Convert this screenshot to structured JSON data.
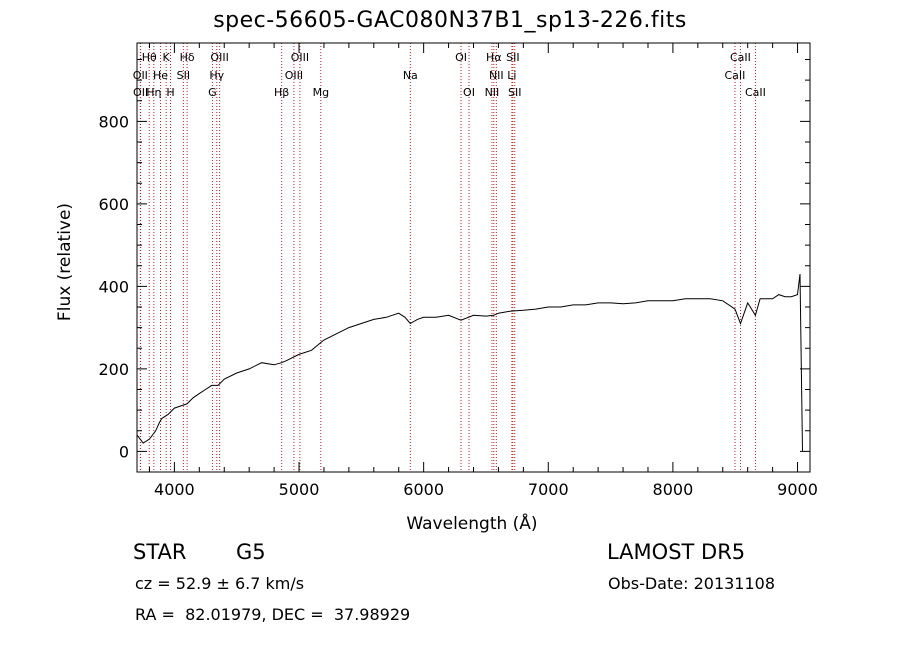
{
  "header": {
    "title": "spec-56605-GAC080N37B1_sp13-226.fits"
  },
  "info": {
    "object_class": "STAR",
    "subclass": "G5",
    "survey": "LAMOST DR5",
    "cz": "cz = 52.9 ± 6.7 km/s",
    "obs_date": "Obs-Date: 20131108",
    "radec": "RA =  82.01979, DEC =  37.98929"
  },
  "chart_data": {
    "type": "line",
    "title": "spec-56605-GAC080N37B1_sp13-226.fits",
    "xlabel": "Wavelength (Å)",
    "ylabel": "Flux (relative)",
    "xlim": [
      3700,
      9100
    ],
    "ylim": [
      -50,
      990
    ],
    "xticks": [
      4000,
      5000,
      6000,
      7000,
      8000,
      9000
    ],
    "yticks": [
      0,
      200,
      400,
      600,
      800
    ],
    "line_color": "#000000",
    "marker_color": "#b22222",
    "series": [
      {
        "x": [
          3700,
          3750,
          3800,
          3850,
          3880,
          3900,
          3950,
          4000,
          4050,
          4100,
          4150,
          4200,
          4250,
          4300,
          4350,
          4400,
          4500,
          4600,
          4700,
          4800,
          4860,
          4900,
          5000,
          5100,
          5200,
          5300,
          5400,
          5500,
          5600,
          5700,
          5800,
          5850,
          5893,
          5950,
          6000,
          6100,
          6200,
          6300,
          6400,
          6500,
          6563,
          6600,
          6700,
          6800,
          6900,
          7000,
          7100,
          7200,
          7300,
          7400,
          7500,
          7600,
          7700,
          7800,
          7900,
          8000,
          8100,
          8200,
          8300,
          8400,
          8498,
          8542,
          8600,
          8662,
          8700,
          8800,
          8850,
          8900,
          8950,
          9000,
          9020,
          9040
        ],
        "y": [
          40,
          20,
          30,
          50,
          70,
          80,
          90,
          105,
          110,
          115,
          130,
          140,
          150,
          160,
          160,
          175,
          190,
          200,
          215,
          210,
          215,
          220,
          235,
          245,
          270,
          285,
          300,
          310,
          320,
          325,
          335,
          325,
          310,
          320,
          325,
          325,
          330,
          318,
          330,
          328,
          330,
          335,
          340,
          342,
          345,
          350,
          350,
          355,
          355,
          360,
          360,
          358,
          360,
          365,
          365,
          365,
          370,
          370,
          370,
          365,
          345,
          310,
          360,
          330,
          370,
          370,
          380,
          375,
          375,
          380,
          430,
          0
        ]
      }
    ],
    "lines": [
      {
        "label": "Hθ",
        "x": 3798,
        "row": 0
      },
      {
        "label": "OII",
        "x": 3727,
        "row": 1
      },
      {
        "label": "OII",
        "x": 3729,
        "row": 2
      },
      {
        "label": "Hη",
        "x": 3835,
        "row": 2
      },
      {
        "label": "K",
        "x": 3934,
        "row": 0
      },
      {
        "label": "He",
        "x": 3889,
        "row": 1
      },
      {
        "label": "H",
        "x": 3969,
        "row": 2
      },
      {
        "label": "Hδ",
        "x": 4102,
        "row": 0
      },
      {
        "label": "SII",
        "x": 4072,
        "row": 1
      },
      {
        "label": "OIII",
        "x": 4363,
        "row": 0
      },
      {
        "label": "Hγ",
        "x": 4340,
        "row": 1
      },
      {
        "label": "G",
        "x": 4305,
        "row": 2
      },
      {
        "label": "OIII",
        "x": 5007,
        "row": 0
      },
      {
        "label": "OIII",
        "x": 4959,
        "row": 1
      },
      {
        "label": "Hβ",
        "x": 4861,
        "row": 2
      },
      {
        "label": "Mg",
        "x": 5175,
        "row": 2
      },
      {
        "label": "Na",
        "x": 5893,
        "row": 1
      },
      {
        "label": "OI",
        "x": 6300,
        "row": 0
      },
      {
        "label": "OI",
        "x": 6364,
        "row": 2
      },
      {
        "label": "Hα",
        "x": 6563,
        "row": 0
      },
      {
        "label": "SII",
        "x": 6716,
        "row": 0
      },
      {
        "label": "NII",
        "x": 6583,
        "row": 1
      },
      {
        "label": "Li",
        "x": 6708,
        "row": 1
      },
      {
        "label": "NII",
        "x": 6548,
        "row": 2
      },
      {
        "label": "SII",
        "x": 6731,
        "row": 2
      },
      {
        "label": "CaII",
        "x": 8542,
        "row": 0
      },
      {
        "label": "CaII",
        "x": 8498,
        "row": 1
      },
      {
        "label": "CaII",
        "x": 8662,
        "row": 2
      }
    ]
  }
}
